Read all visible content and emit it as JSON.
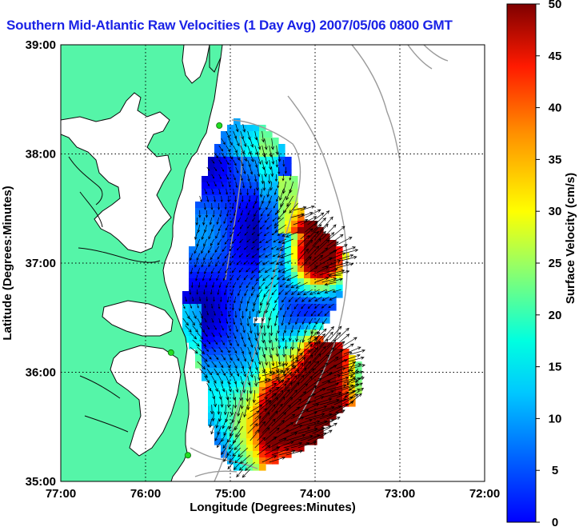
{
  "title": "Southern Mid-Atlantic Raw Velocities (1 Day Avg) 2007/05/06 0800 GMT",
  "chart_data": {
    "type": "heatmap",
    "map_type": "ocean surface current vector map",
    "xlabel": "Longitude (Degrees:Minutes)",
    "ylabel": "Latitude (Degrees:Minutes)",
    "x_ticks": [
      "77:00",
      "76:00",
      "75:00",
      "74:00",
      "73:00",
      "72:00"
    ],
    "y_ticks": [
      "39:00",
      "38:00",
      "37:00",
      "36:00",
      "35:00"
    ],
    "xlim_west_deg": [
      77,
      72
    ],
    "ylim_north_deg": [
      35,
      39
    ],
    "grid": true,
    "colorbar": {
      "label": "Surface Velocity (cm/s)",
      "ticks": [
        "0",
        "5",
        "10",
        "15",
        "20",
        "25",
        "30",
        "35",
        "40",
        "45",
        "50"
      ],
      "range": [
        0,
        50
      ],
      "colormap": "jet"
    },
    "colors": {
      "land": "#55f5a8",
      "coast_line": "#0a0a0a",
      "bathymetry": "#9a9a9a",
      "station_markers": "#22dd22",
      "vectors": "#000000"
    },
    "stations": [
      {
        "lon": -75.13,
        "lat": 38.26
      },
      {
        "lon": -75.7,
        "lat": 36.18
      },
      {
        "lon": -75.5,
        "lat": 35.24
      }
    ]
  }
}
